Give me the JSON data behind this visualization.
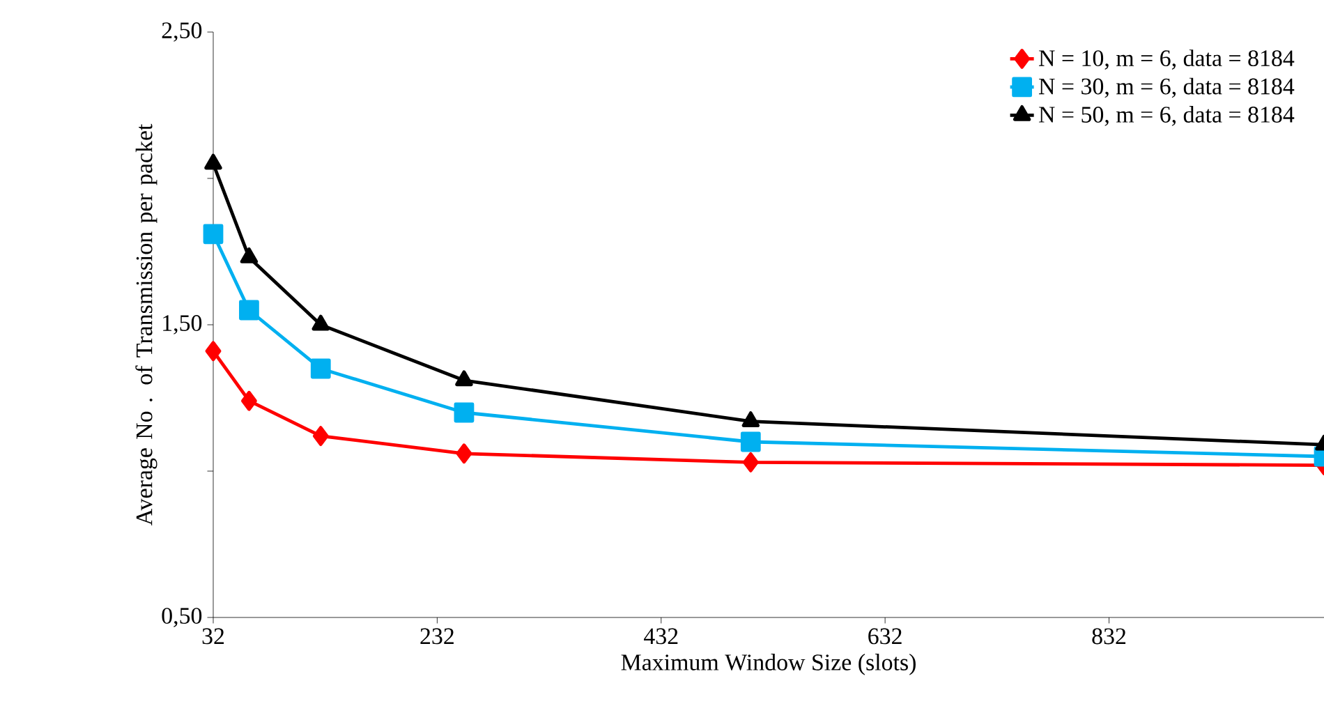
{
  "chart_data": {
    "type": "line",
    "xlabel": "Maximum Window Size (slots)",
    "ylabel": "Average No . of Transmission per packet",
    "x": [
      32,
      64,
      128,
      256,
      512,
      1024
    ],
    "xlim": [
      32,
      1024
    ],
    "xticks": [
      32,
      232,
      432,
      632,
      832
    ],
    "ylim": [
      0.5,
      2.5
    ],
    "yticks": [
      {
        "value": 0.5,
        "label": "0,50"
      },
      {
        "value": 1.0,
        "label": null
      },
      {
        "value": 1.5,
        "label": "1,50"
      },
      {
        "value": 2.0,
        "label": null
      },
      {
        "value": 2.5,
        "label": "2,50"
      }
    ],
    "legend": "top right",
    "grid": false,
    "line_style": "solid",
    "series": [
      {
        "name": "N = 10, m = 6, data = 8184",
        "color": "#ff0000",
        "marker": "diamond",
        "values": [
          1.41,
          1.24,
          1.12,
          1.06,
          1.03,
          1.02
        ]
      },
      {
        "name": "N = 30, m = 6, data = 8184",
        "color": "#00b0f0",
        "marker": "square",
        "values": [
          1.81,
          1.55,
          1.35,
          1.2,
          1.1,
          1.05
        ]
      },
      {
        "name": "N = 50, m = 6, data = 8184",
        "color": "#000000",
        "marker": "triangle",
        "values": [
          2.05,
          1.73,
          1.5,
          1.31,
          1.17,
          1.09
        ]
      }
    ]
  }
}
